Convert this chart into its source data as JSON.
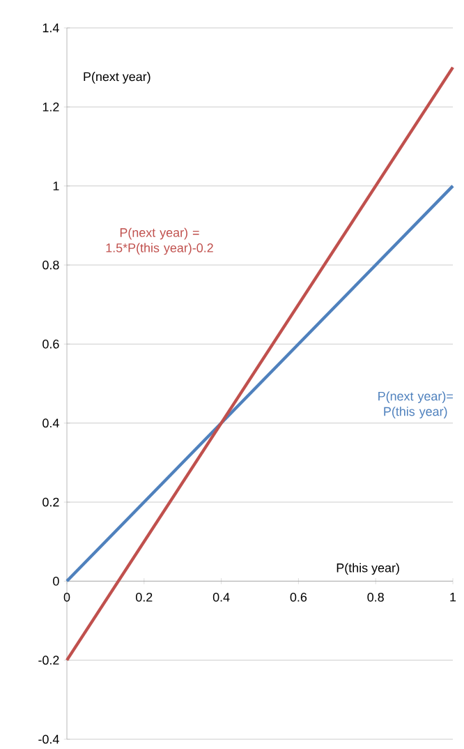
{
  "chart_data": {
    "type": "line",
    "xlabel": "P(this year)",
    "ylabel": "P(next year)",
    "x": [
      0,
      1
    ],
    "series": [
      {
        "name": "P(next year)= P(this year)",
        "color": "#4f81bd",
        "values": [
          0,
          1
        ]
      },
      {
        "name": "P(next year) = 1.5*P(this year)-0.2",
        "color": "#c0504d",
        "values": [
          -0.2,
          1.3
        ]
      }
    ],
    "xlim": [
      0,
      1
    ],
    "ylim": [
      -0.4,
      1.4
    ],
    "xticks": [
      0,
      0.2,
      0.4,
      0.6,
      0.8,
      1
    ],
    "yticks": [
      -0.4,
      -0.2,
      0,
      0.2,
      0.4,
      0.6,
      0.8,
      1,
      1.2,
      1.4
    ],
    "grid": "y",
    "legend": false,
    "marker": "none",
    "line_style": "solid"
  }
}
